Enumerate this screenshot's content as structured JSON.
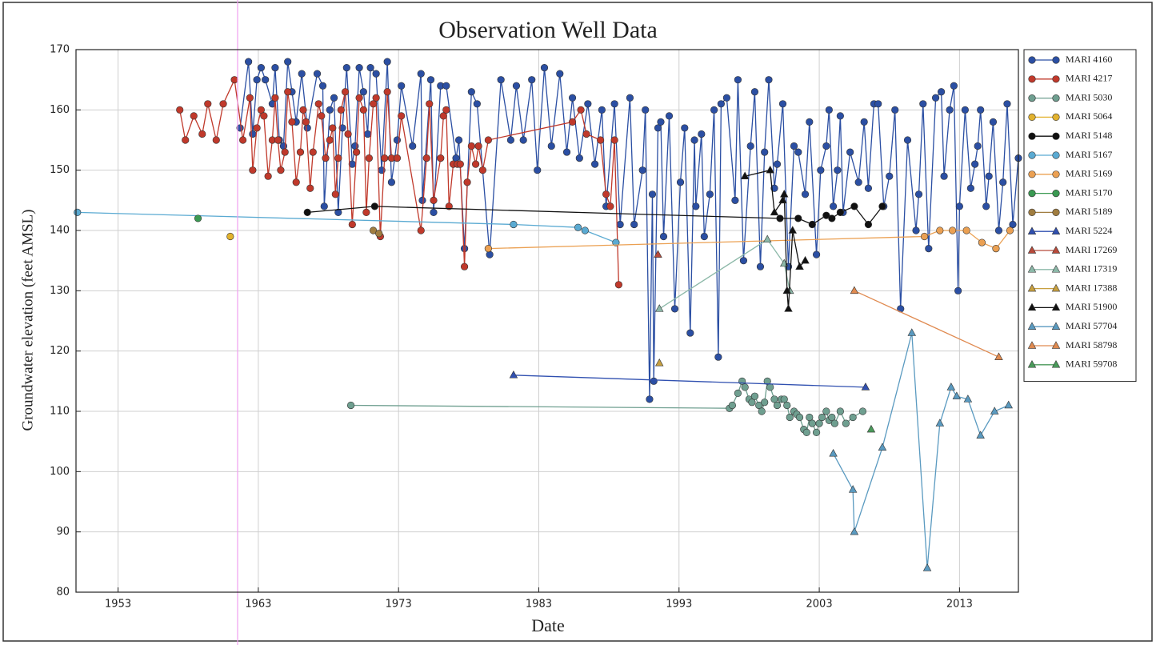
{
  "chart_data": {
    "type": "line",
    "title": "Observation Well Data",
    "xlabel": "Date",
    "ylabel": "Groundwater elevation (feet AMSL)",
    "xlim": [
      1950,
      2017.2
    ],
    "ylim": [
      80,
      170
    ],
    "xticks": [
      1953,
      1963,
      1973,
      1983,
      1993,
      2003,
      2013
    ],
    "yticks": [
      80,
      90,
      100,
      110,
      120,
      130,
      140,
      150,
      160,
      170
    ],
    "grid": true,
    "legend": "outside right",
    "series": [
      {
        "name": "MARI 4160",
        "color": "#2b4fa3",
        "marker": "circle",
        "x": [
          1961.7,
          1962.3,
          1962.6,
          1962.9,
          1963.2,
          1963.5,
          1964.0,
          1964.2,
          1964.5,
          1964.8,
          1965.1,
          1965.4,
          1965.7,
          1966.1,
          1966.5,
          1967.2,
          1967.6,
          1967.7,
          1968.1,
          1968.4,
          1968.7,
          1969.0,
          1969.3,
          1969.7,
          1969.9,
          1970.2,
          1970.5,
          1970.8,
          1971.0,
          1971.4,
          1971.8,
          1972.2,
          1972.5,
          1972.9,
          1973.2,
          1974.0,
          1974.6,
          1974.7,
          1975.3,
          1975.5,
          1976.0,
          1976.4,
          1977.1,
          1977.3,
          1977.7,
          1978.2,
          1978.6,
          1979.5,
          1980.3,
          1981.0,
          1981.4,
          1981.9,
          1982.5,
          1982.9,
          1983.4,
          1983.9,
          1984.5,
          1985.0,
          1985.4,
          1985.9,
          1986.5,
          1987.0,
          1987.5,
          1987.8,
          1988.4,
          1988.8,
          1989.5,
          1989.8,
          1990.4,
          1990.6,
          1990.9,
          1991.1,
          1991.2,
          1991.5,
          1991.7,
          1991.9,
          1992.3,
          1992.7,
          1993.1,
          1993.4,
          1993.8,
          1994.1,
          1994.2,
          1994.6,
          1994.8,
          1995.2,
          1995.5,
          1995.8,
          1996.0,
          1996.4,
          1997.0,
          1997.2,
          1997.6,
          1998.1,
          1998.4,
          1998.8,
          1999.1,
          1999.4,
          1999.8,
          2000.0,
          2000.4,
          2000.8,
          2001.2,
          2001.5,
          2002.0,
          2002.3,
          2002.8,
          2003.1,
          2003.5,
          2003.7,
          2004.0,
          2004.3,
          2004.5,
          2004.7,
          2005.2,
          2005.8,
          2006.2,
          2006.5,
          2006.9,
          2007.2,
          2007.6,
          2008.0,
          2008.4,
          2008.8,
          2009.3,
          2009.9,
          2010.1,
          2010.4,
          2010.8,
          2011.3,
          2011.7,
          2011.9,
          2012.3,
          2012.6,
          2012.9,
          2013.0,
          2013.4,
          2013.8,
          2014.1,
          2014.3,
          2014.5,
          2014.9,
          2015.1,
          2015.4,
          2015.8,
          2016.1,
          2016.4,
          2016.8,
          2017.2
        ],
        "values": [
          157,
          168,
          156,
          165,
          167,
          165,
          161,
          167,
          155,
          154,
          168,
          163,
          158,
          166,
          157,
          166,
          164,
          144,
          160,
          162,
          143,
          157,
          167,
          151,
          154,
          167,
          163,
          156,
          167,
          166,
          150,
          168,
          148,
          155,
          164,
          154,
          166,
          145,
          165,
          143,
          164,
          164,
          152,
          155,
          137,
          163,
          161,
          136,
          165,
          155,
          164,
          155,
          165,
          150,
          167,
          154,
          166,
          153,
          162,
          152,
          161,
          151,
          160,
          144,
          161,
          141,
          162,
          141,
          150,
          160,
          112,
          146,
          115,
          157,
          158,
          139,
          159,
          127,
          148,
          157,
          123,
          155,
          144,
          156,
          139,
          146,
          160,
          119,
          161,
          162,
          145,
          165,
          135,
          154,
          163,
          134,
          153,
          165,
          147,
          151,
          161,
          134,
          154,
          153,
          146,
          158,
          136,
          150,
          154,
          160,
          144,
          150,
          159,
          143,
          153,
          148,
          158,
          147,
          161,
          161,
          144,
          149,
          160,
          127,
          155,
          140,
          146,
          161,
          137,
          162,
          163,
          149,
          160,
          164,
          130,
          144,
          160,
          147,
          151,
          154,
          160,
          144,
          149,
          158,
          140,
          148,
          161,
          141,
          152
        ]
      },
      {
        "name": "MARI 4217",
        "color": "#c0392b",
        "marker": "circle",
        "x": [
          1957.4,
          1957.8,
          1958.4,
          1959.0,
          1959.4,
          1960.0,
          1960.5,
          1961.3,
          1961.9,
          1962.4,
          1962.6,
          1962.9,
          1963.2,
          1963.4,
          1963.7,
          1964.0,
          1964.2,
          1964.4,
          1964.6,
          1964.9,
          1965.1,
          1965.4,
          1965.7,
          1966.0,
          1966.2,
          1966.4,
          1966.7,
          1966.9,
          1967.3,
          1967.5,
          1967.8,
          1968.1,
          1968.3,
          1968.5,
          1968.7,
          1968.9,
          1969.2,
          1969.4,
          1969.7,
          1970.0,
          1970.2,
          1970.5,
          1970.7,
          1970.9,
          1971.2,
          1971.4,
          1971.7,
          1972.0,
          1972.2,
          1972.5,
          1972.9,
          1973.2,
          1974.6,
          1975.0,
          1975.2,
          1975.5,
          1976.0,
          1976.2,
          1976.4,
          1976.6,
          1976.9,
          1977.2,
          1977.4,
          1977.7,
          1977.9,
          1978.2,
          1978.5,
          1978.7,
          1979.0,
          1979.4,
          1985.4,
          1986.0,
          1986.4,
          1987.4,
          1987.8,
          1988.1,
          1988.4,
          1988.7
        ],
        "values": [
          160,
          155,
          159,
          156,
          161,
          155,
          161,
          165,
          155,
          162,
          150,
          157,
          160,
          159,
          149,
          155,
          162,
          155,
          150,
          153,
          163,
          158,
          148,
          153,
          160,
          158,
          147,
          153,
          161,
          159,
          152,
          155,
          157,
          146,
          152,
          160,
          163,
          156,
          141,
          153,
          162,
          160,
          143,
          152,
          161,
          162,
          139,
          152,
          163,
          152,
          152,
          159,
          140,
          152,
          161,
          145,
          152,
          159,
          160,
          144,
          151,
          151,
          151,
          134,
          148,
          154,
          151,
          154,
          150,
          155,
          158,
          160,
          156,
          155,
          146,
          144,
          155,
          131
        ]
      },
      {
        "name": "MARI 5030",
        "color": "#6f9f90",
        "marker": "circle",
        "x": [
          1969.6,
          1996.6,
          1996.8,
          1997.2,
          1997.5,
          1997.7,
          1998.0,
          1998.2,
          1998.4,
          1998.7,
          1998.9,
          1999.1,
          1999.3,
          1999.5,
          1999.8,
          2000.0,
          2000.3,
          2000.5,
          2000.7,
          2000.9,
          2001.2,
          2001.4,
          2001.6,
          2001.9,
          2002.1,
          2002.3,
          2002.5,
          2002.8,
          2003.0,
          2003.2,
          2003.5,
          2003.7,
          2003.9,
          2004.1,
          2004.5,
          2004.9,
          2005.4,
          2006.1
        ],
        "values": [
          111,
          110.5,
          111,
          113,
          115,
          114,
          112,
          111.5,
          112.5,
          111,
          110,
          111.5,
          115,
          114,
          112,
          111,
          112,
          112,
          111,
          109,
          110,
          109.5,
          109,
          107,
          106.5,
          109,
          108,
          106.5,
          108,
          109,
          110,
          108.5,
          109,
          108,
          110,
          108,
          109,
          110
        ]
      },
      {
        "name": "MARI 5064",
        "color": "#e2b22e",
        "marker": "circle",
        "x": [
          1961.0
        ],
        "values": [
          139
        ]
      },
      {
        "name": "MARI 5148",
        "color": "#111111",
        "marker": "circle",
        "x": [
          1966.5,
          1971.3,
          2000.2,
          2001.5,
          2002.5,
          2003.5,
          2003.9,
          2004.5,
          2005.5,
          2006.5,
          2007.5
        ],
        "values": [
          143,
          144,
          142,
          142,
          141,
          142.5,
          142,
          143,
          144,
          141,
          144
        ]
      },
      {
        "name": "MARI 5167",
        "color": "#5aaad2",
        "marker": "circle",
        "x": [
          1950.1,
          1981.2,
          1985.8,
          1986.3,
          1988.5
        ],
        "values": [
          143,
          141,
          140.5,
          140,
          138
        ]
      },
      {
        "name": "MARI 5169",
        "color": "#eba052",
        "marker": "circle",
        "x": [
          1979.4,
          2010.5,
          2011.6,
          2012.5,
          2013.5,
          2014.6,
          2015.6,
          2016.6
        ],
        "values": [
          137,
          139,
          140,
          140,
          140,
          138,
          137,
          140
        ]
      },
      {
        "name": "MARI 5170",
        "color": "#3a9a52",
        "marker": "circle",
        "x": [
          1958.7
        ],
        "values": [
          142
        ]
      },
      {
        "name": "MARI 5189",
        "color": "#a07d40",
        "marker": "circle",
        "x": [
          1971.2,
          1971.6
        ],
        "values": [
          140,
          139.5
        ]
      },
      {
        "name": "MARI 5224",
        "color": "#3050b0",
        "marker": "triangle",
        "x": [
          1981.2,
          2006.3
        ],
        "values": [
          116,
          114
        ]
      },
      {
        "name": "MARI 17269",
        "color": "#b84a3a",
        "marker": "triangle",
        "x": [
          1991.5
        ],
        "values": [
          136
        ]
      },
      {
        "name": "MARI 17319",
        "color": "#8cb8a8",
        "marker": "triangle",
        "x": [
          1991.6,
          1999.3,
          2000.5,
          2000.9
        ],
        "values": [
          127,
          138.5,
          134.5,
          130
        ]
      },
      {
        "name": "MARI 17388",
        "color": "#c8a040",
        "marker": "triangle",
        "x": [
          1991.6
        ],
        "values": [
          118
        ]
      },
      {
        "name": "MARI 51900",
        "color": "#111111",
        "marker": "triangle",
        "x": [
          1997.7,
          1999.5,
          1999.8,
          2000.4,
          2000.5,
          2000.7,
          2000.8,
          2001.1,
          2001.6,
          2002.0
        ],
        "values": [
          149,
          150,
          143,
          145,
          146,
          130,
          127,
          140,
          134,
          135
        ]
      },
      {
        "name": "MARI 57704",
        "color": "#5a9ac0",
        "marker": "triangle",
        "x": [
          2004.0,
          2005.4,
          2005.5,
          2007.5,
          2009.6,
          2010.7,
          2011.6,
          2012.4,
          2012.8,
          2013.6,
          2014.5,
          2015.5,
          2016.5
        ],
        "values": [
          103,
          97,
          90,
          104,
          123,
          84,
          108,
          114,
          112.5,
          112,
          106,
          110,
          111
        ]
      },
      {
        "name": "MARI 58798",
        "color": "#e08a50",
        "marker": "triangle",
        "x": [
          2005.5,
          2015.8
        ],
        "values": [
          130,
          119
        ]
      },
      {
        "name": "MARI 59708",
        "color": "#4a9a5a",
        "marker": "triangle",
        "x": [
          2006.7
        ],
        "values": [
          107
        ]
      }
    ]
  }
}
